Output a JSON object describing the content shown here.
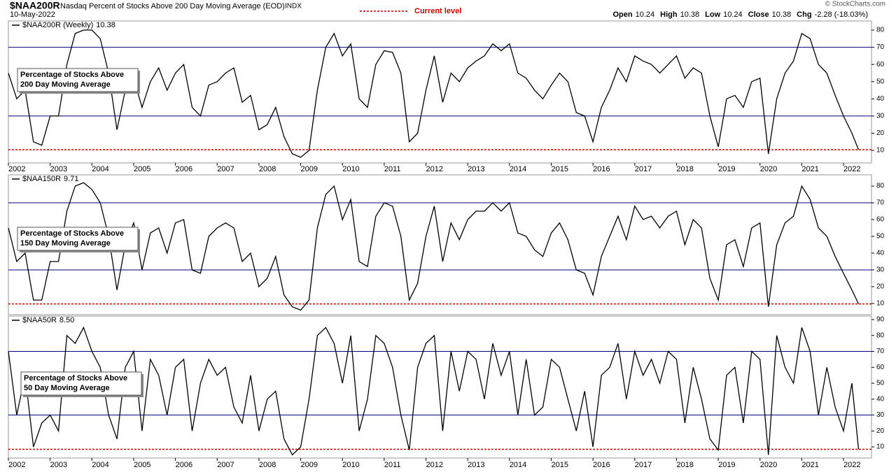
{
  "header": {
    "symbol": "$NAA200R",
    "name": "Nasdaq Percent of Stocks Above 200 Day Moving Average (EOD)",
    "exchange": "INDX",
    "date": "10-May-2022",
    "legend": "Current level",
    "quote": [
      {
        "label": "Open",
        "value": "10.24"
      },
      {
        "label": "High",
        "value": "10.38"
      },
      {
        "label": "Low",
        "value": "10.24"
      },
      {
        "label": "Close",
        "value": "10.38"
      },
      {
        "label": "Chg",
        "value": "-2.28 (-18.03%)"
      }
    ],
    "copyright": "© StockCharts.com"
  },
  "chart_data": [
    {
      "type": "line",
      "legend": "$NAA200R (Weekly)",
      "current_label": "10.38",
      "current_level": 10.38,
      "annotation": [
        "Percentage of Stocks Above",
        "200 Day Moving Average"
      ],
      "x": [
        2002,
        2002.2,
        2002.4,
        2002.6,
        2002.8,
        2003,
        2003.2,
        2003.4,
        2003.6,
        2003.8,
        2004,
        2004.2,
        2004.4,
        2004.6,
        2004.8,
        2005,
        2005.2,
        2005.4,
        2005.6,
        2005.8,
        2006,
        2006.2,
        2006.4,
        2006.6,
        2006.8,
        2007,
        2007.2,
        2007.4,
        2007.6,
        2007.8,
        2008,
        2008.2,
        2008.4,
        2008.6,
        2008.8,
        2009,
        2009.2,
        2009.4,
        2009.6,
        2009.8,
        2010,
        2010.2,
        2010.4,
        2010.6,
        2010.8,
        2011,
        2011.2,
        2011.4,
        2011.6,
        2011.8,
        2012,
        2012.2,
        2012.4,
        2012.6,
        2012.8,
        2013,
        2013.2,
        2013.4,
        2013.6,
        2013.8,
        2014,
        2014.2,
        2014.4,
        2014.6,
        2014.8,
        2015,
        2015.2,
        2015.4,
        2015.6,
        2015.8,
        2016,
        2016.2,
        2016.4,
        2016.6,
        2016.8,
        2017,
        2017.2,
        2017.4,
        2017.6,
        2017.8,
        2018,
        2018.2,
        2018.4,
        2018.6,
        2018.8,
        2019,
        2019.2,
        2019.4,
        2019.6,
        2019.8,
        2020,
        2020.2,
        2020.4,
        2020.6,
        2020.8,
        2021,
        2021.2,
        2021.4,
        2021.6,
        2021.8,
        2022,
        2022.2,
        2022.36
      ],
      "series": [
        {
          "color": "#000000",
          "values": [
            55,
            40,
            45,
            15,
            13,
            30,
            30,
            60,
            78,
            80,
            80,
            75,
            55,
            22,
            45,
            52,
            35,
            50,
            58,
            45,
            55,
            60,
            35,
            30,
            48,
            50,
            55,
            58,
            38,
            42,
            22,
            25,
            35,
            18,
            8,
            6,
            10,
            45,
            70,
            78,
            65,
            72,
            40,
            35,
            60,
            68,
            67,
            55,
            15,
            20,
            45,
            65,
            38,
            55,
            50,
            58,
            62,
            65,
            72,
            68,
            72,
            55,
            52,
            45,
            40,
            48,
            55,
            50,
            32,
            30,
            15,
            35,
            45,
            58,
            50,
            65,
            62,
            60,
            55,
            60,
            65,
            52,
            58,
            55,
            30,
            12,
            40,
            42,
            35,
            50,
            52,
            8,
            40,
            55,
            62,
            78,
            75,
            60,
            55,
            42,
            30,
            20,
            10.38
          ]
        }
      ],
      "xlim": [
        2002,
        2022.67
      ],
      "xticks": [
        2002,
        2003,
        2004,
        2005,
        2006,
        2007,
        2008,
        2009,
        2010,
        2011,
        2012,
        2013,
        2014,
        2015,
        2016,
        2017,
        2018,
        2019,
        2020,
        2021,
        2022
      ],
      "ylim": [
        2.7,
        85.3
      ],
      "yticks": [
        10,
        20,
        30,
        40,
        50,
        60,
        70,
        80
      ],
      "hlines": [
        30,
        70
      ],
      "hline_color": "#000080",
      "current_color": "#cc0000"
    },
    {
      "type": "line",
      "legend": "$NAA150R",
      "current_label": "9.71",
      "current_level": 9.71,
      "annotation": [
        "Percentage of Stocks Above",
        "150 Day Moving Average"
      ],
      "x": [
        2002,
        2002.2,
        2002.4,
        2002.6,
        2002.8,
        2003,
        2003.2,
        2003.4,
        2003.6,
        2003.8,
        2004,
        2004.2,
        2004.4,
        2004.6,
        2004.8,
        2005,
        2005.2,
        2005.4,
        2005.6,
        2005.8,
        2006,
        2006.2,
        2006.4,
        2006.6,
        2006.8,
        2007,
        2007.2,
        2007.4,
        2007.6,
        2007.8,
        2008,
        2008.2,
        2008.4,
        2008.6,
        2008.8,
        2009,
        2009.2,
        2009.4,
        2009.6,
        2009.8,
        2010,
        2010.2,
        2010.4,
        2010.6,
        2010.8,
        2011,
        2011.2,
        2011.4,
        2011.6,
        2011.8,
        2012,
        2012.2,
        2012.4,
        2012.6,
        2012.8,
        2013,
        2013.2,
        2013.4,
        2013.6,
        2013.8,
        2014,
        2014.2,
        2014.4,
        2014.6,
        2014.8,
        2015,
        2015.2,
        2015.4,
        2015.6,
        2015.8,
        2016,
        2016.2,
        2016.4,
        2016.6,
        2016.8,
        2017,
        2017.2,
        2017.4,
        2017.6,
        2017.8,
        2018,
        2018.2,
        2018.4,
        2018.6,
        2018.8,
        2019,
        2019.2,
        2019.4,
        2019.6,
        2019.8,
        2020,
        2020.2,
        2020.4,
        2020.6,
        2020.8,
        2021,
        2021.2,
        2021.4,
        2021.6,
        2021.8,
        2022,
        2022.2,
        2022.36
      ],
      "series": [
        {
          "color": "#000000",
          "values": [
            55,
            35,
            40,
            12,
            12,
            35,
            35,
            65,
            80,
            82,
            78,
            70,
            50,
            18,
            45,
            58,
            30,
            52,
            55,
            40,
            58,
            60,
            30,
            28,
            50,
            55,
            58,
            55,
            35,
            40,
            20,
            25,
            38,
            15,
            8,
            6,
            12,
            55,
            75,
            80,
            60,
            72,
            35,
            32,
            62,
            70,
            68,
            50,
            12,
            22,
            50,
            68,
            35,
            58,
            48,
            60,
            65,
            65,
            70,
            65,
            70,
            52,
            50,
            42,
            38,
            52,
            58,
            48,
            30,
            28,
            15,
            38,
            50,
            62,
            48,
            68,
            60,
            62,
            55,
            62,
            65,
            45,
            60,
            55,
            25,
            12,
            45,
            48,
            32,
            55,
            58,
            8,
            45,
            58,
            62,
            80,
            72,
            55,
            50,
            38,
            28,
            18,
            9.71
          ]
        }
      ],
      "xlim": [
        2002,
        2022.67
      ],
      "ylim": [
        3.3,
        86.7
      ],
      "yticks": [
        10,
        20,
        30,
        40,
        50,
        60,
        70,
        80
      ],
      "hlines": [
        30,
        70
      ],
      "hline_color": "#000080",
      "current_color": "#cc0000"
    },
    {
      "type": "line",
      "legend": "$NAA50R",
      "current_label": "8.50",
      "current_level": 8.5,
      "annotation": [
        "Percentage of Stocks Above",
        "50 Day Moving Average"
      ],
      "x": [
        2002,
        2002.2,
        2002.4,
        2002.6,
        2002.8,
        2003,
        2003.2,
        2003.4,
        2003.6,
        2003.8,
        2004,
        2004.2,
        2004.4,
        2004.6,
        2004.8,
        2005,
        2005.2,
        2005.4,
        2005.6,
        2005.8,
        2006,
        2006.2,
        2006.4,
        2006.6,
        2006.8,
        2007,
        2007.2,
        2007.4,
        2007.6,
        2007.8,
        2008,
        2008.2,
        2008.4,
        2008.6,
        2008.8,
        2009,
        2009.2,
        2009.4,
        2009.6,
        2009.8,
        2010,
        2010.2,
        2010.4,
        2010.6,
        2010.8,
        2011,
        2011.2,
        2011.4,
        2011.6,
        2011.8,
        2012,
        2012.2,
        2012.4,
        2012.6,
        2012.8,
        2013,
        2013.2,
        2013.4,
        2013.6,
        2013.8,
        2014,
        2014.2,
        2014.4,
        2014.6,
        2014.8,
        2015,
        2015.2,
        2015.4,
        2015.6,
        2015.8,
        2016,
        2016.2,
        2016.4,
        2016.6,
        2016.8,
        2017,
        2017.2,
        2017.4,
        2017.6,
        2017.8,
        2018,
        2018.2,
        2018.4,
        2018.6,
        2018.8,
        2019,
        2019.2,
        2019.4,
        2019.6,
        2019.8,
        2020,
        2020.2,
        2020.4,
        2020.6,
        2020.8,
        2021,
        2021.2,
        2021.4,
        2021.6,
        2021.8,
        2022,
        2022.2,
        2022.36
      ],
      "series": [
        {
          "color": "#000000",
          "values": [
            70,
            30,
            55,
            10,
            25,
            30,
            20,
            80,
            75,
            85,
            70,
            60,
            30,
            15,
            60,
            70,
            20,
            65,
            55,
            30,
            60,
            65,
            20,
            50,
            65,
            55,
            60,
            35,
            25,
            55,
            20,
            40,
            45,
            15,
            5,
            10,
            40,
            80,
            85,
            75,
            50,
            80,
            20,
            40,
            80,
            75,
            60,
            30,
            8,
            60,
            75,
            80,
            20,
            70,
            45,
            70,
            65,
            40,
            75,
            55,
            70,
            30,
            65,
            30,
            35,
            65,
            60,
            40,
            20,
            45,
            10,
            55,
            60,
            75,
            40,
            70,
            55,
            65,
            50,
            70,
            65,
            25,
            60,
            40,
            15,
            8,
            55,
            60,
            25,
            70,
            65,
            5,
            80,
            60,
            50,
            85,
            70,
            30,
            60,
            35,
            20,
            50,
            8.5
          ]
        }
      ],
      "xlim": [
        2002,
        2022.67
      ],
      "xticks": [
        2002,
        2003,
        2004,
        2005,
        2006,
        2007,
        2008,
        2009,
        2010,
        2011,
        2012,
        2013,
        2014,
        2015,
        2016,
        2017,
        2018,
        2019,
        2020,
        2021,
        2022
      ],
      "ylim": [
        3,
        92.2
      ],
      "yticks": [
        10,
        20,
        30,
        40,
        50,
        60,
        70,
        80,
        90
      ],
      "hlines": [
        30,
        70
      ],
      "hline_color": "#000080",
      "current_color": "#cc0000"
    }
  ]
}
